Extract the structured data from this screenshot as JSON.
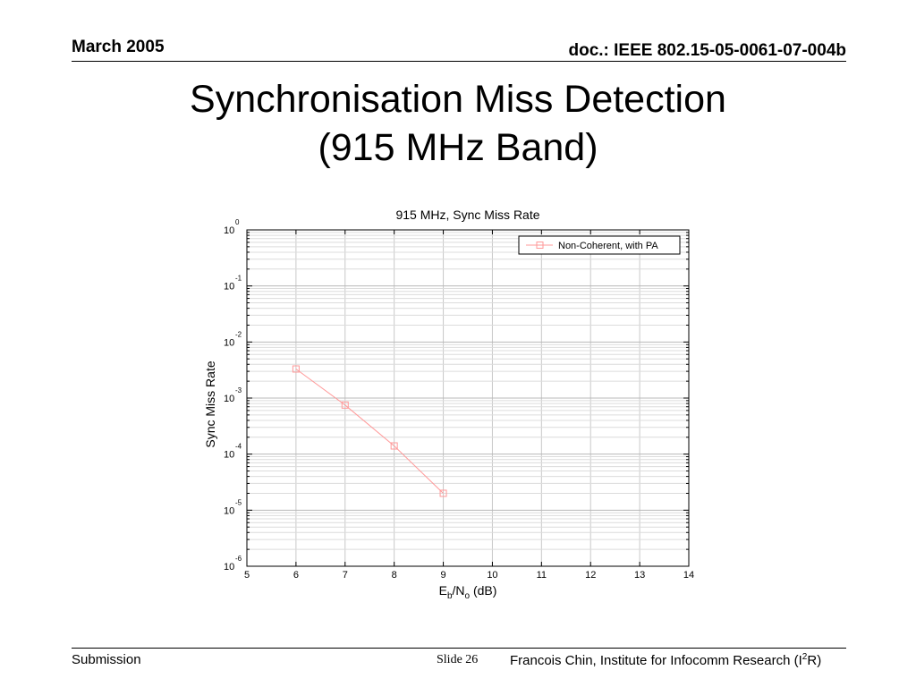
{
  "header": {
    "date": "March 2005",
    "doc": "doc.: IEEE 802.15-05-0061-07-004b"
  },
  "slide_title": {
    "line1": "Synchronisation Miss Detection",
    "line2": "(915 MHz Band)"
  },
  "footer": {
    "left": "Submission",
    "slide": "Slide 26",
    "right_prefix": "Francois Chin, Institute for Infocomm Research (I",
    "right_sup": "2",
    "right_suffix": "R)"
  },
  "chart_data": {
    "type": "line",
    "title": "915 MHz, Sync Miss Rate",
    "xlabel": "Eb/No (dB)",
    "ylabel": "Sync Miss Rate",
    "xlim": [
      5,
      14
    ],
    "ylim": [
      1e-06,
      1
    ],
    "yscale": "log",
    "grid": true,
    "legend_position": "top-right",
    "x_ticks": [
      5,
      6,
      7,
      8,
      9,
      10,
      11,
      12,
      13,
      14
    ],
    "y_ticks": [
      {
        "base": "10",
        "exp": "0",
        "value": 1
      },
      {
        "base": "10",
        "exp": "-1",
        "value": 0.1
      },
      {
        "base": "10",
        "exp": "-2",
        "value": 0.01
      },
      {
        "base": "10",
        "exp": "-3",
        "value": 0.001
      },
      {
        "base": "10",
        "exp": "-4",
        "value": 0.0001
      },
      {
        "base": "10",
        "exp": "-5",
        "value": 1e-05
      },
      {
        "base": "10",
        "exp": "-6",
        "value": 1e-06
      }
    ],
    "series": [
      {
        "name": "Non-Coherent, with PA",
        "color": "#ff9999",
        "marker": "square",
        "x": [
          6,
          7,
          8,
          9
        ],
        "y": [
          0.0033,
          0.00075,
          0.00014,
          2e-05
        ]
      }
    ]
  }
}
